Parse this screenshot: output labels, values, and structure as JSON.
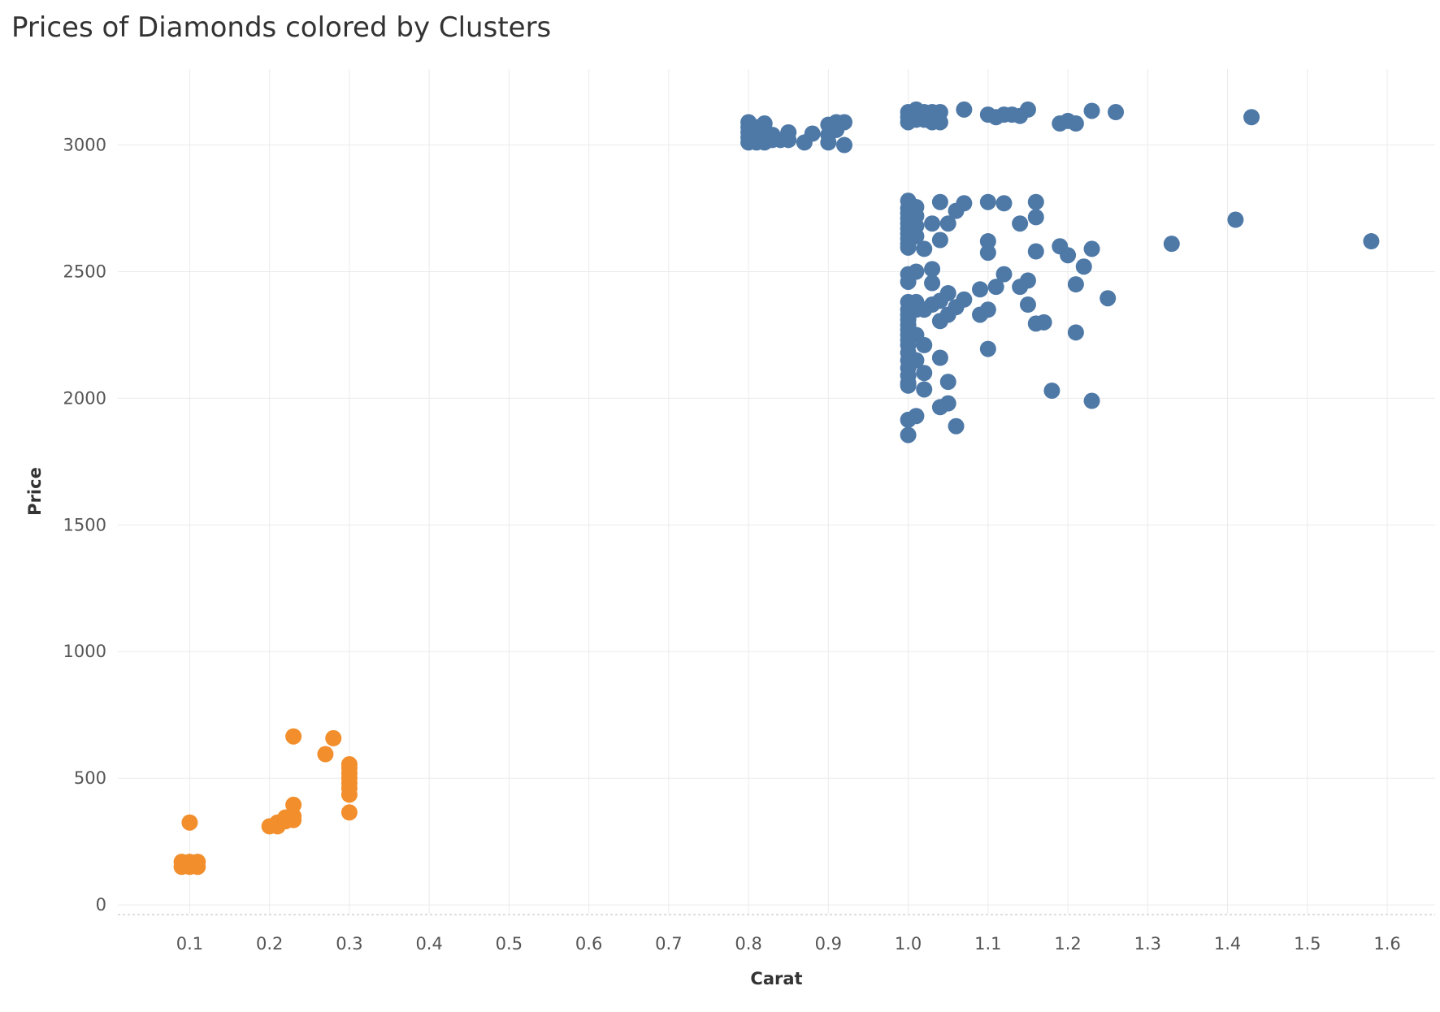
{
  "chart_data": {
    "type": "scatter",
    "title": "Prices of Diamonds colored by Clusters",
    "xlabel": "Carat",
    "ylabel": "Price",
    "xlim": [
      0.01,
      1.66
    ],
    "ylim": [
      -35,
      3300
    ],
    "x_ticks": [
      "0.1",
      "0.2",
      "0.3",
      "0.4",
      "0.5",
      "0.6",
      "0.7",
      "0.8",
      "0.9",
      "1.0",
      "1.1",
      "1.2",
      "1.3",
      "1.4",
      "1.5",
      "1.6"
    ],
    "y_ticks": [
      "0",
      "500",
      "1000",
      "1500",
      "2000",
      "2500",
      "3000"
    ],
    "grid": true,
    "legend": "none",
    "series": [
      {
        "color": "#f28e2b",
        "points": [
          [
            0.09,
            150
          ],
          [
            0.09,
            170
          ],
          [
            0.1,
            150
          ],
          [
            0.1,
            170
          ],
          [
            0.11,
            150
          ],
          [
            0.11,
            170
          ],
          [
            0.1,
            160
          ],
          [
            0.1,
            325
          ],
          [
            0.2,
            310
          ],
          [
            0.21,
            310
          ],
          [
            0.21,
            325
          ],
          [
            0.22,
            330
          ],
          [
            0.22,
            345
          ],
          [
            0.23,
            335
          ],
          [
            0.23,
            350
          ],
          [
            0.23,
            395
          ],
          [
            0.23,
            665
          ],
          [
            0.27,
            595
          ],
          [
            0.28,
            658
          ],
          [
            0.3,
            365
          ],
          [
            0.3,
            435
          ],
          [
            0.3,
            460
          ],
          [
            0.3,
            480
          ],
          [
            0.3,
            500
          ],
          [
            0.3,
            520
          ],
          [
            0.3,
            540
          ],
          [
            0.3,
            555
          ]
        ]
      },
      {
        "color": "#4e79a7",
        "points": [
          [
            0.8,
            3010
          ],
          [
            0.8,
            3030
          ],
          [
            0.8,
            3050
          ],
          [
            0.8,
            3070
          ],
          [
            0.8,
            3090
          ],
          [
            0.81,
            3010
          ],
          [
            0.81,
            3040
          ],
          [
            0.81,
            3070
          ],
          [
            0.82,
            3010
          ],
          [
            0.82,
            3050
          ],
          [
            0.82,
            3085
          ],
          [
            0.83,
            3020
          ],
          [
            0.83,
            3040
          ],
          [
            0.84,
            3020
          ],
          [
            0.85,
            3020
          ],
          [
            0.85,
            3050
          ],
          [
            0.87,
            3010
          ],
          [
            0.88,
            3045
          ],
          [
            0.9,
            3010
          ],
          [
            0.9,
            3040
          ],
          [
            0.9,
            3080
          ],
          [
            0.91,
            3060
          ],
          [
            0.91,
            3090
          ],
          [
            0.92,
            3000
          ],
          [
            0.92,
            3090
          ],
          [
            1.0,
            3090
          ],
          [
            1.0,
            3110
          ],
          [
            1.0,
            3130
          ],
          [
            1.01,
            3100
          ],
          [
            1.01,
            3140
          ],
          [
            1.02,
            3100
          ],
          [
            1.02,
            3130
          ],
          [
            1.03,
            3090
          ],
          [
            1.03,
            3130
          ],
          [
            1.04,
            3090
          ],
          [
            1.04,
            3130
          ],
          [
            1.07,
            3140
          ],
          [
            1.1,
            3120
          ],
          [
            1.11,
            3110
          ],
          [
            1.12,
            3120
          ],
          [
            1.13,
            3120
          ],
          [
            1.14,
            3115
          ],
          [
            1.15,
            3140
          ],
          [
            1.19,
            3085
          ],
          [
            1.2,
            3095
          ],
          [
            1.21,
            3085
          ],
          [
            1.23,
            3135
          ],
          [
            1.26,
            3130
          ],
          [
            1.43,
            3110
          ],
          [
            1.0,
            2780
          ],
          [
            1.0,
            2750
          ],
          [
            1.0,
            2730
          ],
          [
            1.0,
            2710
          ],
          [
            1.0,
            2690
          ],
          [
            1.0,
            2670
          ],
          [
            1.0,
            2650
          ],
          [
            1.0,
            2630
          ],
          [
            1.0,
            2610
          ],
          [
            1.0,
            2595
          ],
          [
            1.01,
            2755
          ],
          [
            1.01,
            2720
          ],
          [
            1.01,
            2680
          ],
          [
            1.01,
            2640
          ],
          [
            1.02,
            2590
          ],
          [
            1.03,
            2690
          ],
          [
            1.04,
            2775
          ],
          [
            1.04,
            2625
          ],
          [
            1.05,
            2690
          ],
          [
            1.06,
            2740
          ],
          [
            1.07,
            2770
          ],
          [
            1.1,
            2775
          ],
          [
            1.1,
            2620
          ],
          [
            1.1,
            2575
          ],
          [
            1.12,
            2770
          ],
          [
            1.14,
            2690
          ],
          [
            1.16,
            2775
          ],
          [
            1.16,
            2715
          ],
          [
            1.16,
            2580
          ],
          [
            1.19,
            2600
          ],
          [
            1.2,
            2565
          ],
          [
            1.22,
            2520
          ],
          [
            1.23,
            2590
          ],
          [
            1.33,
            2610
          ],
          [
            1.41,
            2705
          ],
          [
            1.58,
            2620
          ],
          [
            1.0,
            2490
          ],
          [
            1.0,
            2460
          ],
          [
            1.01,
            2500
          ],
          [
            1.03,
            2510
          ],
          [
            1.03,
            2455
          ],
          [
            1.05,
            2415
          ],
          [
            1.09,
            2430
          ],
          [
            1.11,
            2440
          ],
          [
            1.12,
            2490
          ],
          [
            1.14,
            2440
          ],
          [
            1.15,
            2465
          ],
          [
            1.21,
            2450
          ],
          [
            1.25,
            2395
          ],
          [
            1.0,
            2380
          ],
          [
            1.0,
            2350
          ],
          [
            1.0,
            2330
          ],
          [
            1.0,
            2310
          ],
          [
            1.0,
            2290
          ],
          [
            1.0,
            2270
          ],
          [
            1.0,
            2250
          ],
          [
            1.0,
            2230
          ],
          [
            1.0,
            2210
          ],
          [
            1.0,
            2180
          ],
          [
            1.0,
            2150
          ],
          [
            1.0,
            2120
          ],
          [
            1.0,
            2090
          ],
          [
            1.0,
            2060
          ],
          [
            1.0,
            2050
          ],
          [
            1.01,
            2380
          ],
          [
            1.01,
            2350
          ],
          [
            1.01,
            2250
          ],
          [
            1.01,
            2150
          ],
          [
            1.02,
            2350
          ],
          [
            1.02,
            2210
          ],
          [
            1.02,
            2100
          ],
          [
            1.02,
            2035
          ],
          [
            1.03,
            2370
          ],
          [
            1.04,
            2385
          ],
          [
            1.04,
            2305
          ],
          [
            1.04,
            2160
          ],
          [
            1.05,
            2330
          ],
          [
            1.05,
            2065
          ],
          [
            1.06,
            2360
          ],
          [
            1.07,
            2390
          ],
          [
            1.09,
            2330
          ],
          [
            1.1,
            2350
          ],
          [
            1.1,
            2195
          ],
          [
            1.15,
            2370
          ],
          [
            1.16,
            2295
          ],
          [
            1.17,
            2300
          ],
          [
            1.21,
            2260
          ],
          [
            1.0,
            1915
          ],
          [
            1.0,
            1855
          ],
          [
            1.01,
            1930
          ],
          [
            1.04,
            1965
          ],
          [
            1.05,
            1980
          ],
          [
            1.06,
            1890
          ],
          [
            1.18,
            2030
          ],
          [
            1.23,
            1990
          ]
        ]
      }
    ]
  }
}
